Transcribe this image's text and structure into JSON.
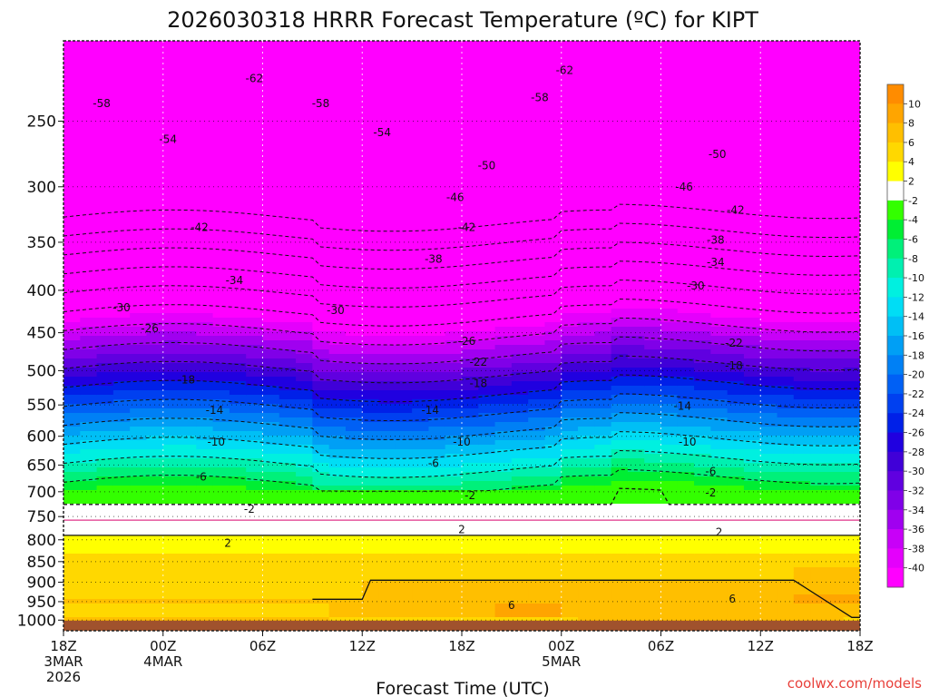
{
  "chart_data": {
    "type": "heatmap",
    "title": "2026030318 HRRR Forecast Temperature (ºC) for KIPT",
    "xlabel": "Forecast Time (UTC)",
    "ylabel": "",
    "credit": "coolwx.com/models",
    "x_ticks": [
      {
        "hour": 0,
        "lines": [
          "18Z",
          "3MAR",
          "2026"
        ]
      },
      {
        "hour": 6,
        "lines": [
          "00Z",
          "4MAR"
        ]
      },
      {
        "hour": 12,
        "lines": [
          "06Z"
        ]
      },
      {
        "hour": 18,
        "lines": [
          "12Z"
        ]
      },
      {
        "hour": 24,
        "lines": [
          "18Z"
        ]
      },
      {
        "hour": 30,
        "lines": [
          "00Z",
          "5MAR"
        ]
      },
      {
        "hour": 36,
        "lines": [
          "06Z"
        ]
      },
      {
        "hour": 42,
        "lines": [
          "12Z"
        ]
      },
      {
        "hour": 48,
        "lines": [
          "18Z"
        ]
      }
    ],
    "x_range_hours": [
      0,
      48
    ],
    "y_axis": {
      "type": "pressure",
      "units": "hPa",
      "range": [
        1030,
        200
      ],
      "log": true
    },
    "y_ticks": [
      250,
      300,
      350,
      400,
      450,
      500,
      550,
      600,
      650,
      700,
      750,
      800,
      850,
      900,
      950,
      1000
    ],
    "colorbar": {
      "labels": [
        "10",
        "8",
        "6",
        "4",
        "2",
        "-2",
        "-4",
        "-6",
        "-8",
        "-10",
        "-12",
        "-14",
        "-16",
        "-18",
        "-20",
        "-22",
        "-24",
        "-26",
        "-28",
        "-30",
        "-32",
        "-34",
        "-36",
        "-38",
        "-40"
      ],
      "colors": [
        "#ff8c00",
        "#ffa500",
        "#ffbf00",
        "#ffd800",
        "#ffff00",
        "#ffffff",
        "#33ff00",
        "#00ee33",
        "#00f07a",
        "#00f0b0",
        "#00f0e0",
        "#00ddf5",
        "#00bff5",
        "#009ff5",
        "#0080f5",
        "#0060f5",
        "#0040f0",
        "#0020e8",
        "#2000e0",
        "#4000d8",
        "#6000e0",
        "#8000e8",
        "#a000f0",
        "#c800f8",
        "#e400fc",
        "#ff00ff"
      ]
    },
    "ground_color": "#a0522d",
    "freezing_line_color": "#e0348a",
    "contour_labels": [
      {
        "v": "-62",
        "h": 11.5,
        "p": 222
      },
      {
        "v": "-62",
        "h": 30.2,
        "p": 217
      },
      {
        "v": "-58",
        "h": 2.3,
        "p": 238
      },
      {
        "v": "-58",
        "h": 15.5,
        "p": 238
      },
      {
        "v": "-58",
        "h": 28.7,
        "p": 234
      },
      {
        "v": "-54",
        "h": 6.3,
        "p": 263
      },
      {
        "v": "-54",
        "h": 19.2,
        "p": 258
      },
      {
        "v": "-50",
        "h": 25.5,
        "p": 283
      },
      {
        "v": "-50",
        "h": 39.4,
        "p": 274
      },
      {
        "v": "-46",
        "h": 23.6,
        "p": 309
      },
      {
        "v": "-46",
        "h": 37.4,
        "p": 300
      },
      {
        "v": "-42",
        "h": 8.2,
        "p": 336
      },
      {
        "v": "-42",
        "h": 24.3,
        "p": 336
      },
      {
        "v": "-42",
        "h": 40.5,
        "p": 320
      },
      {
        "v": "-38",
        "h": 22.3,
        "p": 367
      },
      {
        "v": "-38",
        "h": 39.3,
        "p": 348
      },
      {
        "v": "-34",
        "h": 10.3,
        "p": 389
      },
      {
        "v": "-34",
        "h": 39.3,
        "p": 370
      },
      {
        "v": "-30",
        "h": 3.5,
        "p": 420
      },
      {
        "v": "-30",
        "h": 16.4,
        "p": 423
      },
      {
        "v": "-30",
        "h": 38.1,
        "p": 395
      },
      {
        "v": "-26",
        "h": 5.2,
        "p": 445
      },
      {
        "v": "-26",
        "h": 24.3,
        "p": 461
      },
      {
        "v": "-22",
        "h": 25.0,
        "p": 488
      },
      {
        "v": "-22",
        "h": 40.4,
        "p": 463
      },
      {
        "v": "-18",
        "h": 7.4,
        "p": 513
      },
      {
        "v": "-18",
        "h": 25.0,
        "p": 518
      },
      {
        "v": "-18",
        "h": 40.4,
        "p": 493
      },
      {
        "v": "-14",
        "h": 9.1,
        "p": 558
      },
      {
        "v": "-14",
        "h": 22.1,
        "p": 558
      },
      {
        "v": "-14",
        "h": 37.3,
        "p": 552
      },
      {
        "v": "-10",
        "h": 9.2,
        "p": 610
      },
      {
        "v": "-10",
        "h": 24.0,
        "p": 610
      },
      {
        "v": "-10",
        "h": 37.6,
        "p": 610
      },
      {
        "v": "-6",
        "h": 8.3,
        "p": 672
      },
      {
        "v": "-6",
        "h": 22.3,
        "p": 647
      },
      {
        "v": "-6",
        "h": 39.0,
        "p": 662
      },
      {
        "v": "-2",
        "h": 11.2,
        "p": 735
      },
      {
        "v": "-2",
        "h": 24.5,
        "p": 707
      },
      {
        "v": "-2",
        "h": 39.0,
        "p": 702
      },
      {
        "v": "2",
        "h": 9.9,
        "p": 808
      },
      {
        "v": "2",
        "h": 24.0,
        "p": 778
      },
      {
        "v": "2",
        "h": 39.5,
        "p": 783
      },
      {
        "v": "6",
        "h": 27.0,
        "p": 960
      },
      {
        "v": "6",
        "h": 40.3,
        "p": 943
      }
    ]
  }
}
